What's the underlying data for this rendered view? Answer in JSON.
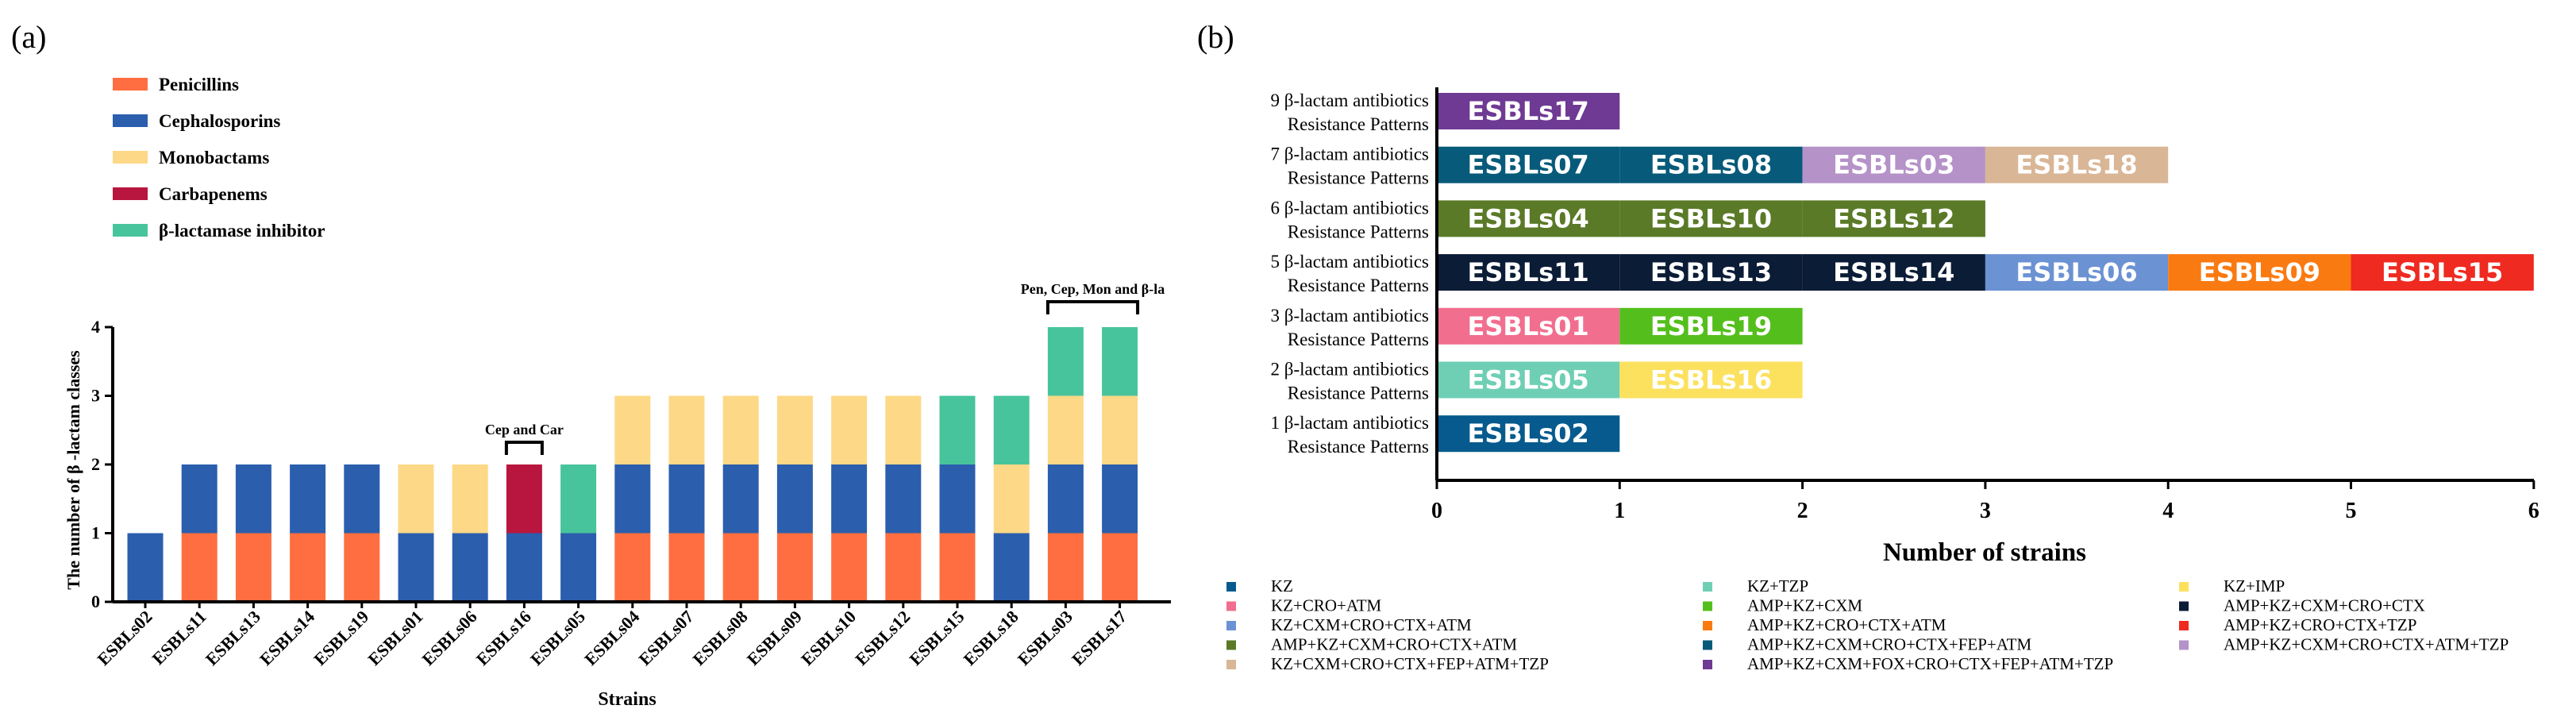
{
  "chart_data": [
    {
      "type": "bar",
      "stacked": true,
      "panel_label": "(a)",
      "title": "",
      "xlabel": "Strains",
      "ylabel": "The number of β -lactam classes",
      "ylim": [
        0,
        4
      ],
      "yticks": [
        "0",
        "1",
        "2",
        "3",
        "4"
      ],
      "categories": [
        "ESBLs02",
        "ESBLs11",
        "ESBLs13",
        "ESBLs14",
        "ESBLs19",
        "ESBLs01",
        "ESBLs06",
        "ESBLs16",
        "ESBLs05",
        "ESBLs04",
        "ESBLs07",
        "ESBLs08",
        "ESBLs09",
        "ESBLs10",
        "ESBLs12",
        "ESBLs15",
        "ESBLs18",
        "ESBLs03",
        "ESBLs17"
      ],
      "legend_position": "top-left",
      "series": [
        {
          "name": "Penicillins",
          "color": "#FF6E40",
          "values": [
            0,
            1,
            1,
            1,
            1,
            0,
            0,
            0,
            0,
            1,
            1,
            1,
            1,
            1,
            1,
            1,
            0,
            1,
            1
          ]
        },
        {
          "name": "Cephalosporins",
          "color": "#2B5EAD",
          "values": [
            1,
            1,
            1,
            1,
            1,
            1,
            1,
            1,
            1,
            1,
            1,
            1,
            1,
            1,
            1,
            1,
            1,
            1,
            1
          ]
        },
        {
          "name": "Monobactams",
          "color": "#FDD886",
          "values": [
            0,
            0,
            0,
            0,
            0,
            1,
            1,
            0,
            0,
            1,
            1,
            1,
            1,
            1,
            1,
            0,
            1,
            1,
            1
          ]
        },
        {
          "name": "Carbapenems",
          "color": "#B8163F",
          "values": [
            0,
            0,
            0,
            0,
            0,
            0,
            0,
            1,
            0,
            0,
            0,
            0,
            0,
            0,
            0,
            0,
            0,
            0,
            0
          ]
        },
        {
          "name": "β-lactamase inhibitor",
          "color": "#48C49C",
          "values": [
            0,
            0,
            0,
            0,
            0,
            0,
            0,
            0,
            1,
            0,
            0,
            0,
            0,
            0,
            0,
            1,
            1,
            1,
            1
          ]
        }
      ],
      "annotations": [
        {
          "text": "Cep and Car",
          "from": 7,
          "to": 7
        },
        {
          "text": "Pen, Cep, Mon and β-la",
          "from": 17,
          "to": 18
        }
      ]
    },
    {
      "type": "bar",
      "orientation": "horizontal",
      "stacked": true,
      "panel_label": "(b)",
      "title": "",
      "xlabel": "Number of strains",
      "xlim": [
        0,
        6
      ],
      "xticks": [
        "0",
        "1",
        "2",
        "3",
        "4",
        "5",
        "6"
      ],
      "legend_position": "bottom",
      "rows": [
        {
          "line1": "9 β-lactam antibiotics",
          "line2": "Resistance Patterns",
          "segments": [
            {
              "label": "ESBLs17",
              "value": 1,
              "color": "#6E3A93",
              "pattern": "AMP+KZ+CXM+FOX+CRO+CTX+FEP+ATM+TZP"
            }
          ]
        },
        {
          "line1": "7 β-lactam antibiotics",
          "line2": "Resistance Patterns",
          "segments": [
            {
              "label": "ESBLs07",
              "value": 1,
              "color": "#075A7A",
              "pattern": "AMP+KZ+CXM+CRO+CTX+FEP+ATM"
            },
            {
              "label": "ESBLs08",
              "value": 1,
              "color": "#075A7A",
              "pattern": "AMP+KZ+CXM+CRO+CTX+FEP+ATM"
            },
            {
              "label": "ESBLs03",
              "value": 1,
              "color": "#B592C8",
              "pattern": "AMP+KZ+CXM+CRO+CTX+ATM+TZP"
            },
            {
              "label": "ESBLs18",
              "value": 1,
              "color": "#D9B696",
              "pattern": "KZ+CXM+CRO+CTX+FEP+ATM+TZP"
            }
          ]
        },
        {
          "line1": "6 β-lactam antibiotics",
          "line2": "Resistance Patterns",
          "segments": [
            {
              "label": "ESBLs04",
              "value": 1,
              "color": "#5A7A27",
              "pattern": "AMP+KZ+CXM+CRO+CTX+ATM"
            },
            {
              "label": "ESBLs10",
              "value": 1,
              "color": "#5A7A27",
              "pattern": "AMP+KZ+CXM+CRO+CTX+ATM"
            },
            {
              "label": "ESBLs12",
              "value": 1,
              "color": "#5A7A27",
              "pattern": "AMP+KZ+CXM+CRO+CTX+ATM"
            }
          ]
        },
        {
          "line1": "5 β-lactam antibiotics",
          "line2": "Resistance Patterns",
          "segments": [
            {
              "label": "ESBLs11",
              "value": 1,
              "color": "#0B1C36",
              "pattern": "AMP+KZ+CXM+CRO+CTX"
            },
            {
              "label": "ESBLs13",
              "value": 1,
              "color": "#0B1C36",
              "pattern": "AMP+KZ+CXM+CRO+CTX"
            },
            {
              "label": "ESBLs14",
              "value": 1,
              "color": "#0B1C36",
              "pattern": "AMP+KZ+CXM+CRO+CTX"
            },
            {
              "label": "ESBLs06",
              "value": 1,
              "color": "#6B92D3",
              "pattern": "KZ+CXM+CRO+CTX+ATM"
            },
            {
              "label": "ESBLs09",
              "value": 1,
              "color": "#FA7A12",
              "pattern": "AMP+KZ+CRO+CTX+ATM"
            },
            {
              "label": "ESBLs15",
              "value": 1,
              "color": "#EE2A21",
              "pattern": "AMP+KZ+CRO+CTX+TZP"
            }
          ]
        },
        {
          "line1": "3 β-lactam antibiotics",
          "line2": "Resistance Patterns",
          "segments": [
            {
              "label": "ESBLs01",
              "value": 1,
              "color": "#F26E8E",
              "pattern": "KZ+CRO+ATM"
            },
            {
              "label": "ESBLs19",
              "value": 1,
              "color": "#54BF1C",
              "pattern": "AMP+KZ+CXM"
            }
          ]
        },
        {
          "line1": "2 β-lactam antibiotics",
          "line2": "Resistance Patterns",
          "segments": [
            {
              "label": "ESBLs05",
              "value": 1,
              "color": "#6ECFB4",
              "pattern": "KZ+TZP"
            },
            {
              "label": "ESBLs16",
              "value": 1,
              "color": "#FBE15E",
              "pattern": "KZ+IMP"
            }
          ]
        },
        {
          "line1": "1 β-lactam antibiotics",
          "line2": "Resistance Patterns",
          "segments": [
            {
              "label": "ESBLs02",
              "value": 1,
              "color": "#075A8D",
              "pattern": "KZ"
            }
          ]
        }
      ],
      "legend": [
        {
          "label": "KZ",
          "color": "#075A8D"
        },
        {
          "label": "KZ+TZP",
          "color": "#6ECFB4"
        },
        {
          "label": "KZ+IMP",
          "color": "#FBE15E"
        },
        {
          "label": "KZ+CRO+ATM",
          "color": "#F26E8E"
        },
        {
          "label": "AMP+KZ+CXM",
          "color": "#54BF1C"
        },
        {
          "label": "AMP+KZ+CXM+CRO+CTX",
          "color": "#0B1C36"
        },
        {
          "label": "KZ+CXM+CRO+CTX+ATM",
          "color": "#6B92D3"
        },
        {
          "label": "AMP+KZ+CRO+CTX+ATM",
          "color": "#FA7A12"
        },
        {
          "label": "AMP+KZ+CRO+CTX+TZP",
          "color": "#EE2A21"
        },
        {
          "label": "AMP+KZ+CXM+CRO+CTX+ATM",
          "color": "#5A7A27"
        },
        {
          "label": "AMP+KZ+CXM+CRO+CTX+FEP+ATM",
          "color": "#075A7A"
        },
        {
          "label": "AMP+KZ+CXM+CRO+CTX+ATM+TZP",
          "color": "#B592C8"
        },
        {
          "label": "KZ+CXM+CRO+CTX+FEP+ATM+TZP",
          "color": "#D9B696"
        },
        {
          "label": "AMP+KZ+CXM+FOX+CRO+CTX+FEP+ATM+TZP",
          "color": "#6E3A93"
        }
      ]
    }
  ]
}
